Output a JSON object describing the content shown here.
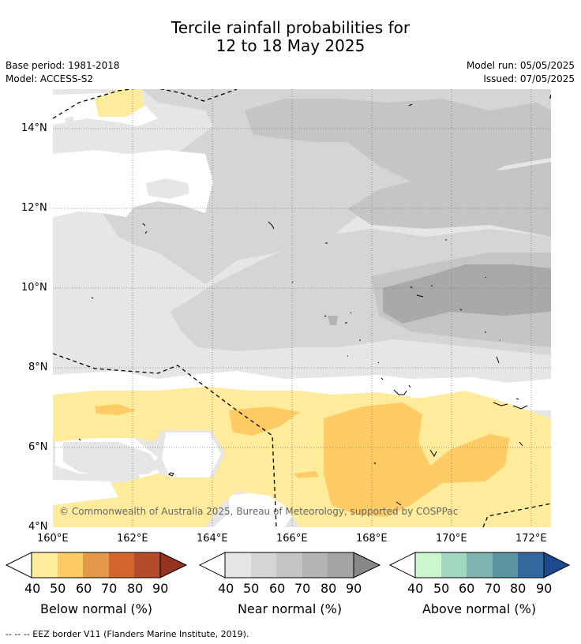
{
  "title": {
    "line1": "Tercile rainfall probabilities for",
    "line2": "12 to 18 May 2025"
  },
  "meta": {
    "base_period": "Base period: 1981-2018",
    "model": "Model: ACCESS-S2",
    "model_run": "Model run: 05/05/2025",
    "issued": "Issued: 07/05/2025"
  },
  "map": {
    "extent": {
      "lon": [
        160,
        172.5
      ],
      "lat": [
        4,
        15
      ]
    },
    "lat_ticks": [
      "14°N",
      "12°N",
      "10°N",
      "8°N",
      "6°N",
      "4°N"
    ],
    "lon_ticks": [
      "160°E",
      "162°E",
      "164°E",
      "166°E",
      "168°E",
      "170°E",
      "172°E"
    ],
    "copyright": "© Commonwealth of Australia 2025, Bureau of Meteorology, supported by COSPPac"
  },
  "colorbars": [
    {
      "label": "Below normal (%)",
      "ticks": [
        "40",
        "50",
        "60",
        "70",
        "80",
        "90"
      ],
      "colors": [
        "#ffeb9c",
        "#fecb65",
        "#e5974a",
        "#d3652f",
        "#b24a2a",
        "#963220"
      ]
    },
    {
      "label": "Near normal (%)",
      "ticks": [
        "40",
        "50",
        "60",
        "70",
        "80",
        "90"
      ],
      "colors": [
        "#e6e6e6",
        "#d5d5d5",
        "#c5c5c5",
        "#b3b3b3",
        "#a3a3a3",
        "#888888"
      ]
    },
    {
      "label": "Above normal (%)",
      "ticks": [
        "40",
        "50",
        "60",
        "70",
        "80",
        "90"
      ],
      "colors": [
        "#ccf6cc",
        "#a1d8bf",
        "#7fb5b0",
        "#5b93a0",
        "#326aa0",
        "#1c4a8c"
      ]
    }
  ],
  "footnote": "--  --  -- EEZ border V11 (Flanders Marine Institute, 2019)."
}
